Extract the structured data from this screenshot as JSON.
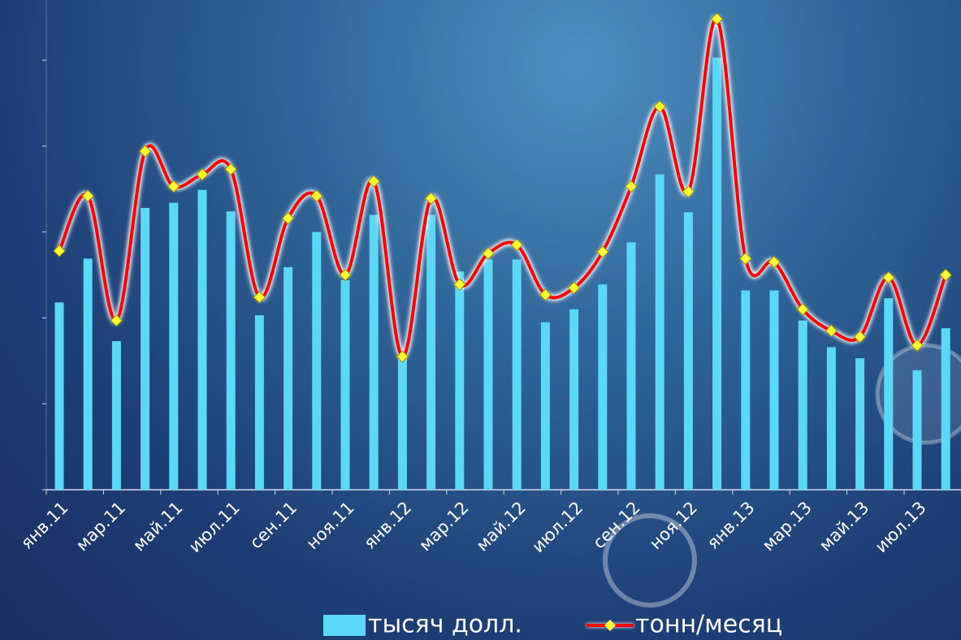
{
  "chart_data": {
    "type": "bar-line",
    "categories": [
      "янв.11",
      null,
      "мар.11",
      null,
      "май.11",
      null,
      "июл.11",
      null,
      "сен.11",
      null,
      "ноя.11",
      null,
      "янв.12",
      null,
      "мар.12",
      null,
      "май.12",
      null,
      "июл.12",
      null,
      "сен.12",
      null,
      "ноя.12",
      null,
      "янв.13",
      null,
      "мар.13",
      null,
      "май.13",
      null,
      "июл.13",
      null
    ],
    "series": [
      {
        "name": "тысяч долл.",
        "type": "bar",
        "color": "#5ad8f5",
        "values": [
          2.18,
          2.69,
          1.73,
          3.28,
          3.34,
          3.49,
          3.24,
          2.03,
          2.59,
          3.0,
          2.44,
          3.2,
          1.54,
          3.2,
          2.54,
          2.68,
          2.68,
          1.95,
          2.1,
          2.39,
          2.88,
          3.67,
          3.23,
          5.03,
          2.32,
          2.32,
          1.97,
          1.66,
          1.53,
          2.23,
          1.39,
          1.88
        ]
      },
      {
        "name": "тонн/месяц",
        "type": "line",
        "color": "#ff0000",
        "marker_color": "#ffff33",
        "values": [
          2.78,
          3.42,
          1.97,
          3.94,
          3.53,
          3.67,
          3.73,
          2.24,
          3.16,
          3.42,
          2.5,
          3.59,
          1.55,
          3.39,
          2.39,
          2.75,
          2.85,
          2.27,
          2.35,
          2.77,
          3.53,
          4.46,
          3.47,
          5.48,
          2.69,
          2.65,
          2.1,
          1.85,
          1.78,
          2.47,
          1.68,
          2.5
        ]
      }
    ],
    "ylim": [
      0,
      5.7
    ],
    "yticks": [
      0,
      1,
      2,
      3,
      4,
      5
    ],
    "smooth": true
  }
}
